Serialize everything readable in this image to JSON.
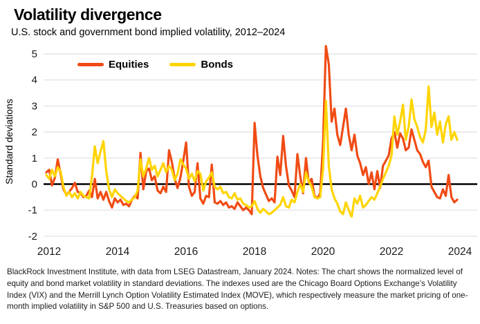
{
  "header": {
    "title": "Volatility divergence",
    "subtitle": "U.S. stock and government bond implied volatility, 2012–2024"
  },
  "legend": [
    {
      "label": "Equities",
      "color": "#F04B14"
    },
    {
      "label": "Bonds",
      "color": "#FFD400"
    }
  ],
  "colors": {
    "equities": "#F04B14",
    "bonds": "#FFD400",
    "grid": "#E4E4EA",
    "zero_line": "#000000",
    "text": "#1A1A1A"
  },
  "footnote": "BlackRock Investment Institute, with data from LSEG Datastream, January 2024. Notes: The chart shows the normalized level of equity and bond market volatility in standard deviations. The indexes used are the Chicago Board Options Exchange’s Volatility Index (VIX) and the Merrill Lynch Option Volatility Estimated Index (MOVE), which respectively measure the market pricing of one-month implied volatility in S&P 500 and U.S. Treasuries based on options.",
  "chart_data": {
    "type": "line",
    "title": "Volatility divergence",
    "subtitle": "U.S. stock and government bond implied volatility, 2012–2024",
    "xlabel": "",
    "ylabel": "Standard deviations",
    "x_unit": "decimal_year_monthly",
    "x_start": 2012.0,
    "x_step": 0.0833333,
    "x_ticks": [
      2012,
      2014,
      2016,
      2018,
      2020,
      2022,
      2024
    ],
    "y_ticks": [
      5,
      4,
      3,
      2,
      1,
      0,
      -1,
      -2
    ],
    "xlim": [
      2012,
      2024.6
    ],
    "ylim": [
      -2.1,
      5.25
    ],
    "grid": "horizontal",
    "zero_line": true,
    "legend_position": "top-left-inside",
    "series": [
      {
        "name": "Equities",
        "color": "#F04B14",
        "values": [
          0.45,
          0.55,
          -0.05,
          0.25,
          0.95,
          0.4,
          -0.2,
          -0.4,
          -0.3,
          -0.15,
          0.05,
          -0.3,
          -0.35,
          -0.5,
          -0.45,
          -0.25,
          -0.5,
          0.2,
          -0.55,
          -0.3,
          -0.6,
          -0.3,
          -0.65,
          -0.9,
          -0.55,
          -0.7,
          -0.6,
          -0.8,
          -0.75,
          -0.85,
          -0.6,
          -0.45,
          -0.55,
          1.2,
          -0.2,
          0.5,
          0.6,
          0.15,
          0.3,
          -0.25,
          -0.35,
          -0.1,
          -0.3,
          1.3,
          0.85,
          0.2,
          -0.15,
          0.25,
          0.9,
          1.6,
          -0.1,
          -0.45,
          -0.3,
          0.8,
          -0.55,
          -0.75,
          -0.45,
          -0.5,
          0.75,
          -0.7,
          -0.75,
          -0.65,
          -0.8,
          -0.7,
          -0.9,
          -0.85,
          -0.95,
          -0.7,
          -0.85,
          -1.0,
          -0.9,
          -1.0,
          -1.15,
          2.35,
          1.1,
          0.3,
          -0.15,
          -0.4,
          -0.65,
          -0.55,
          -0.7,
          1.05,
          0.35,
          1.85,
          0.7,
          -0.05,
          -0.25,
          -0.5,
          1.15,
          0.3,
          -0.35,
          1.0,
          0.05,
          0.2,
          -0.45,
          -0.55,
          -0.35,
          1.6,
          5.3,
          4.6,
          2.4,
          2.9,
          1.9,
          1.5,
          2.2,
          2.9,
          1.9,
          1.3,
          1.9,
          1.1,
          0.8,
          0.35,
          0.65,
          0.0,
          0.45,
          -0.2,
          0.5,
          -0.15,
          0.7,
          0.9,
          1.1,
          1.75,
          2.0,
          1.4,
          1.95,
          1.75,
          1.3,
          1.4,
          2.1,
          1.7,
          1.3,
          1.15,
          0.85,
          0.65,
          0.9,
          -0.1,
          -0.3,
          -0.5,
          -0.55,
          -0.2,
          -0.45,
          0.35,
          -0.5,
          -0.7,
          -0.6
        ]
      },
      {
        "name": "Bonds",
        "color": "#FFD400",
        "values": [
          0.35,
          0.2,
          0.55,
          0.3,
          0.65,
          0.5,
          -0.1,
          -0.45,
          -0.3,
          -0.5,
          -0.35,
          -0.55,
          -0.3,
          -0.45,
          -0.5,
          -0.55,
          0.3,
          1.45,
          0.8,
          1.25,
          1.65,
          0.5,
          -0.2,
          -0.5,
          -0.2,
          -0.35,
          -0.45,
          -0.55,
          -0.65,
          -0.7,
          -0.6,
          -0.5,
          -0.25,
          0.95,
          0.3,
          0.6,
          1.0,
          0.55,
          0.7,
          0.3,
          0.55,
          0.8,
          0.45,
          0.7,
          0.55,
          0.15,
          0.4,
          0.95,
          0.75,
          0.6,
          0.2,
          0.4,
          0.1,
          0.5,
          0.4,
          -0.25,
          0.1,
          0.25,
          0.45,
          -0.1,
          -0.2,
          -0.1,
          -0.35,
          -0.3,
          -0.5,
          -0.55,
          -0.35,
          -0.6,
          -0.55,
          -0.75,
          -0.8,
          -0.9,
          -0.85,
          -0.65,
          -0.95,
          -1.1,
          -0.95,
          -1.05,
          -1.15,
          -1.1,
          -1.0,
          -0.9,
          -0.8,
          -0.5,
          -0.85,
          -0.9,
          -0.6,
          -0.7,
          -0.3,
          0.0,
          -0.3,
          0.45,
          0.1,
          -0.1,
          -0.5,
          -0.55,
          -0.5,
          0.6,
          3.2,
          0.7,
          -0.2,
          -0.55,
          -0.75,
          -1.05,
          -1.15,
          -0.7,
          -1.0,
          -1.25,
          -0.55,
          -0.75,
          -0.45,
          -0.9,
          -0.8,
          -0.65,
          -0.5,
          -0.6,
          -0.35,
          -0.1,
          0.2,
          0.45,
          0.7,
          1.1,
          2.6,
          1.9,
          2.4,
          3.05,
          1.7,
          2.2,
          3.25,
          2.5,
          2.2,
          1.8,
          1.6,
          2.1,
          3.75,
          2.2,
          2.75,
          1.9,
          2.4,
          1.6,
          2.3,
          2.6,
          1.7,
          2.0,
          1.7
        ]
      }
    ]
  }
}
